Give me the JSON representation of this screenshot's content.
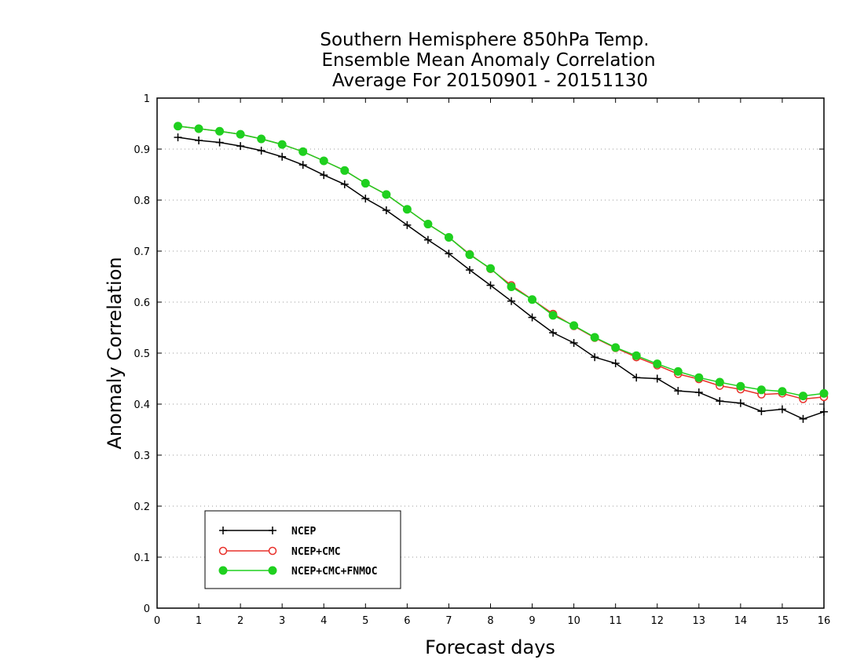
{
  "chart_data": {
    "type": "line",
    "title": [
      "Southern Hemisphere 850hPa Temp.",
      "Ensemble Mean Anomaly Correlation",
      "Average For 20150901 - 20151130"
    ],
    "xlabel": "Forecast days",
    "ylabel": "Anomaly Correlation",
    "xlim": [
      0,
      16
    ],
    "ylim": [
      0,
      1
    ],
    "xticks": [
      "0",
      "1",
      "2",
      "3",
      "4",
      "5",
      "6",
      "7",
      "8",
      "9",
      "10",
      "11",
      "12",
      "13",
      "14",
      "15",
      "16"
    ],
    "yticks": [
      "0",
      "0.1",
      "0.2",
      "0.3",
      "0.4",
      "0.5",
      "0.6",
      "0.7",
      "0.8",
      "0.9",
      "1"
    ],
    "grid": "horizontal dotted",
    "legend_position": "bottom-left",
    "x": [
      0.5,
      1,
      1.5,
      2,
      2.5,
      3,
      3.5,
      4,
      4.5,
      5,
      5.5,
      6,
      6.5,
      7,
      7.5,
      8,
      8.5,
      9,
      9.5,
      10,
      10.5,
      11,
      11.5,
      12,
      12.5,
      13,
      13.5,
      14,
      14.5,
      15,
      15.5,
      16
    ],
    "series": [
      {
        "name": "NCEP",
        "color": "#000000",
        "marker": "plus",
        "values": [
          0.923,
          0.917,
          0.913,
          0.906,
          0.897,
          0.885,
          0.869,
          0.849,
          0.831,
          0.803,
          0.78,
          0.751,
          0.722,
          0.695,
          0.663,
          0.633,
          0.602,
          0.57,
          0.54,
          0.52,
          0.492,
          0.48,
          0.452,
          0.45,
          0.426,
          0.423,
          0.406,
          0.402,
          0.386,
          0.39,
          0.371,
          0.385
        ]
      },
      {
        "name": "NCEP+CMC",
        "color": "#e8302a",
        "marker": "open-circle",
        "values": [
          0.945,
          0.94,
          0.935,
          0.929,
          0.92,
          0.909,
          0.895,
          0.877,
          0.858,
          0.833,
          0.811,
          0.782,
          0.753,
          0.727,
          0.694,
          0.665,
          0.633,
          0.605,
          0.577,
          0.553,
          0.53,
          0.51,
          0.492,
          0.476,
          0.459,
          0.449,
          0.436,
          0.429,
          0.419,
          0.421,
          0.41,
          0.414
        ]
      },
      {
        "name": "NCEP+CMC+FNMOC",
        "color": "#1fd01f",
        "marker": "filled-circle",
        "values": [
          0.945,
          0.94,
          0.935,
          0.929,
          0.92,
          0.909,
          0.895,
          0.877,
          0.858,
          0.833,
          0.811,
          0.782,
          0.753,
          0.727,
          0.693,
          0.666,
          0.63,
          0.605,
          0.574,
          0.554,
          0.531,
          0.511,
          0.495,
          0.479,
          0.464,
          0.452,
          0.443,
          0.435,
          0.428,
          0.425,
          0.416,
          0.421
        ]
      }
    ]
  }
}
